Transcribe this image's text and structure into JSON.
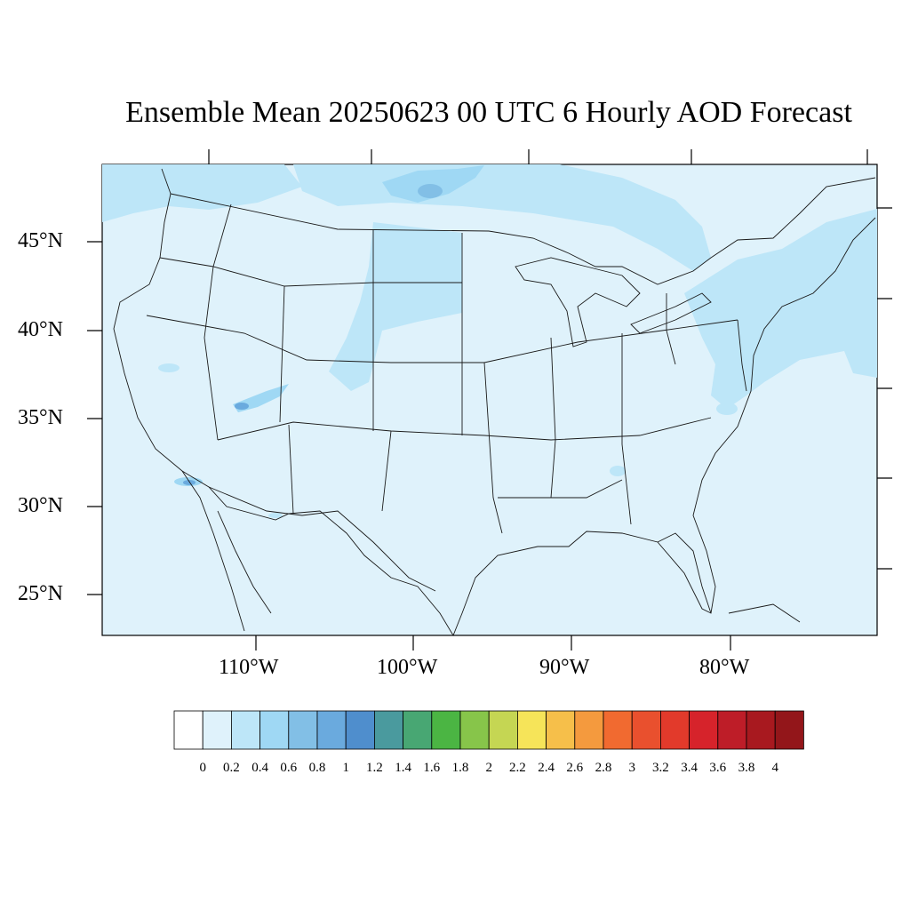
{
  "title": "Ensemble Mean 20250623 00 UTC 6 Hourly AOD Forecast",
  "lat_labels": [
    "45°N",
    "40°N",
    "35°N",
    "30°N",
    "25°N"
  ],
  "lon_labels": [
    "110°W",
    "100°W",
    "90°W",
    "80°W"
  ],
  "colorbar": {
    "labels": [
      "0",
      "0.2",
      "0.4",
      "0.6",
      "0.8",
      "1",
      "1.2",
      "1.4",
      "1.6",
      "1.8",
      "2",
      "2.2",
      "2.4",
      "2.6",
      "2.8",
      "3",
      "3.2",
      "3.4",
      "3.6",
      "3.8",
      "4"
    ],
    "colors": [
      "#ffffff",
      "#dff2fb",
      "#bde6f8",
      "#9fd8f4",
      "#82bfe6",
      "#6aaade",
      "#4f8ecd",
      "#4a9a9e",
      "#48a773",
      "#4bb543",
      "#87c54a",
      "#c5d653",
      "#f6e459",
      "#f6bf4a",
      "#f49a3e",
      "#f16a30",
      "#e9502e",
      "#e23a2b",
      "#d6232b",
      "#be1d28",
      "#a8191f",
      "#93161a"
    ]
  },
  "colors": {
    "background_field": "#dff2fb",
    "elevated_aod": "#bde6f8",
    "hotspot": "#82bfe6",
    "boundary": "#1a1a1a"
  }
}
